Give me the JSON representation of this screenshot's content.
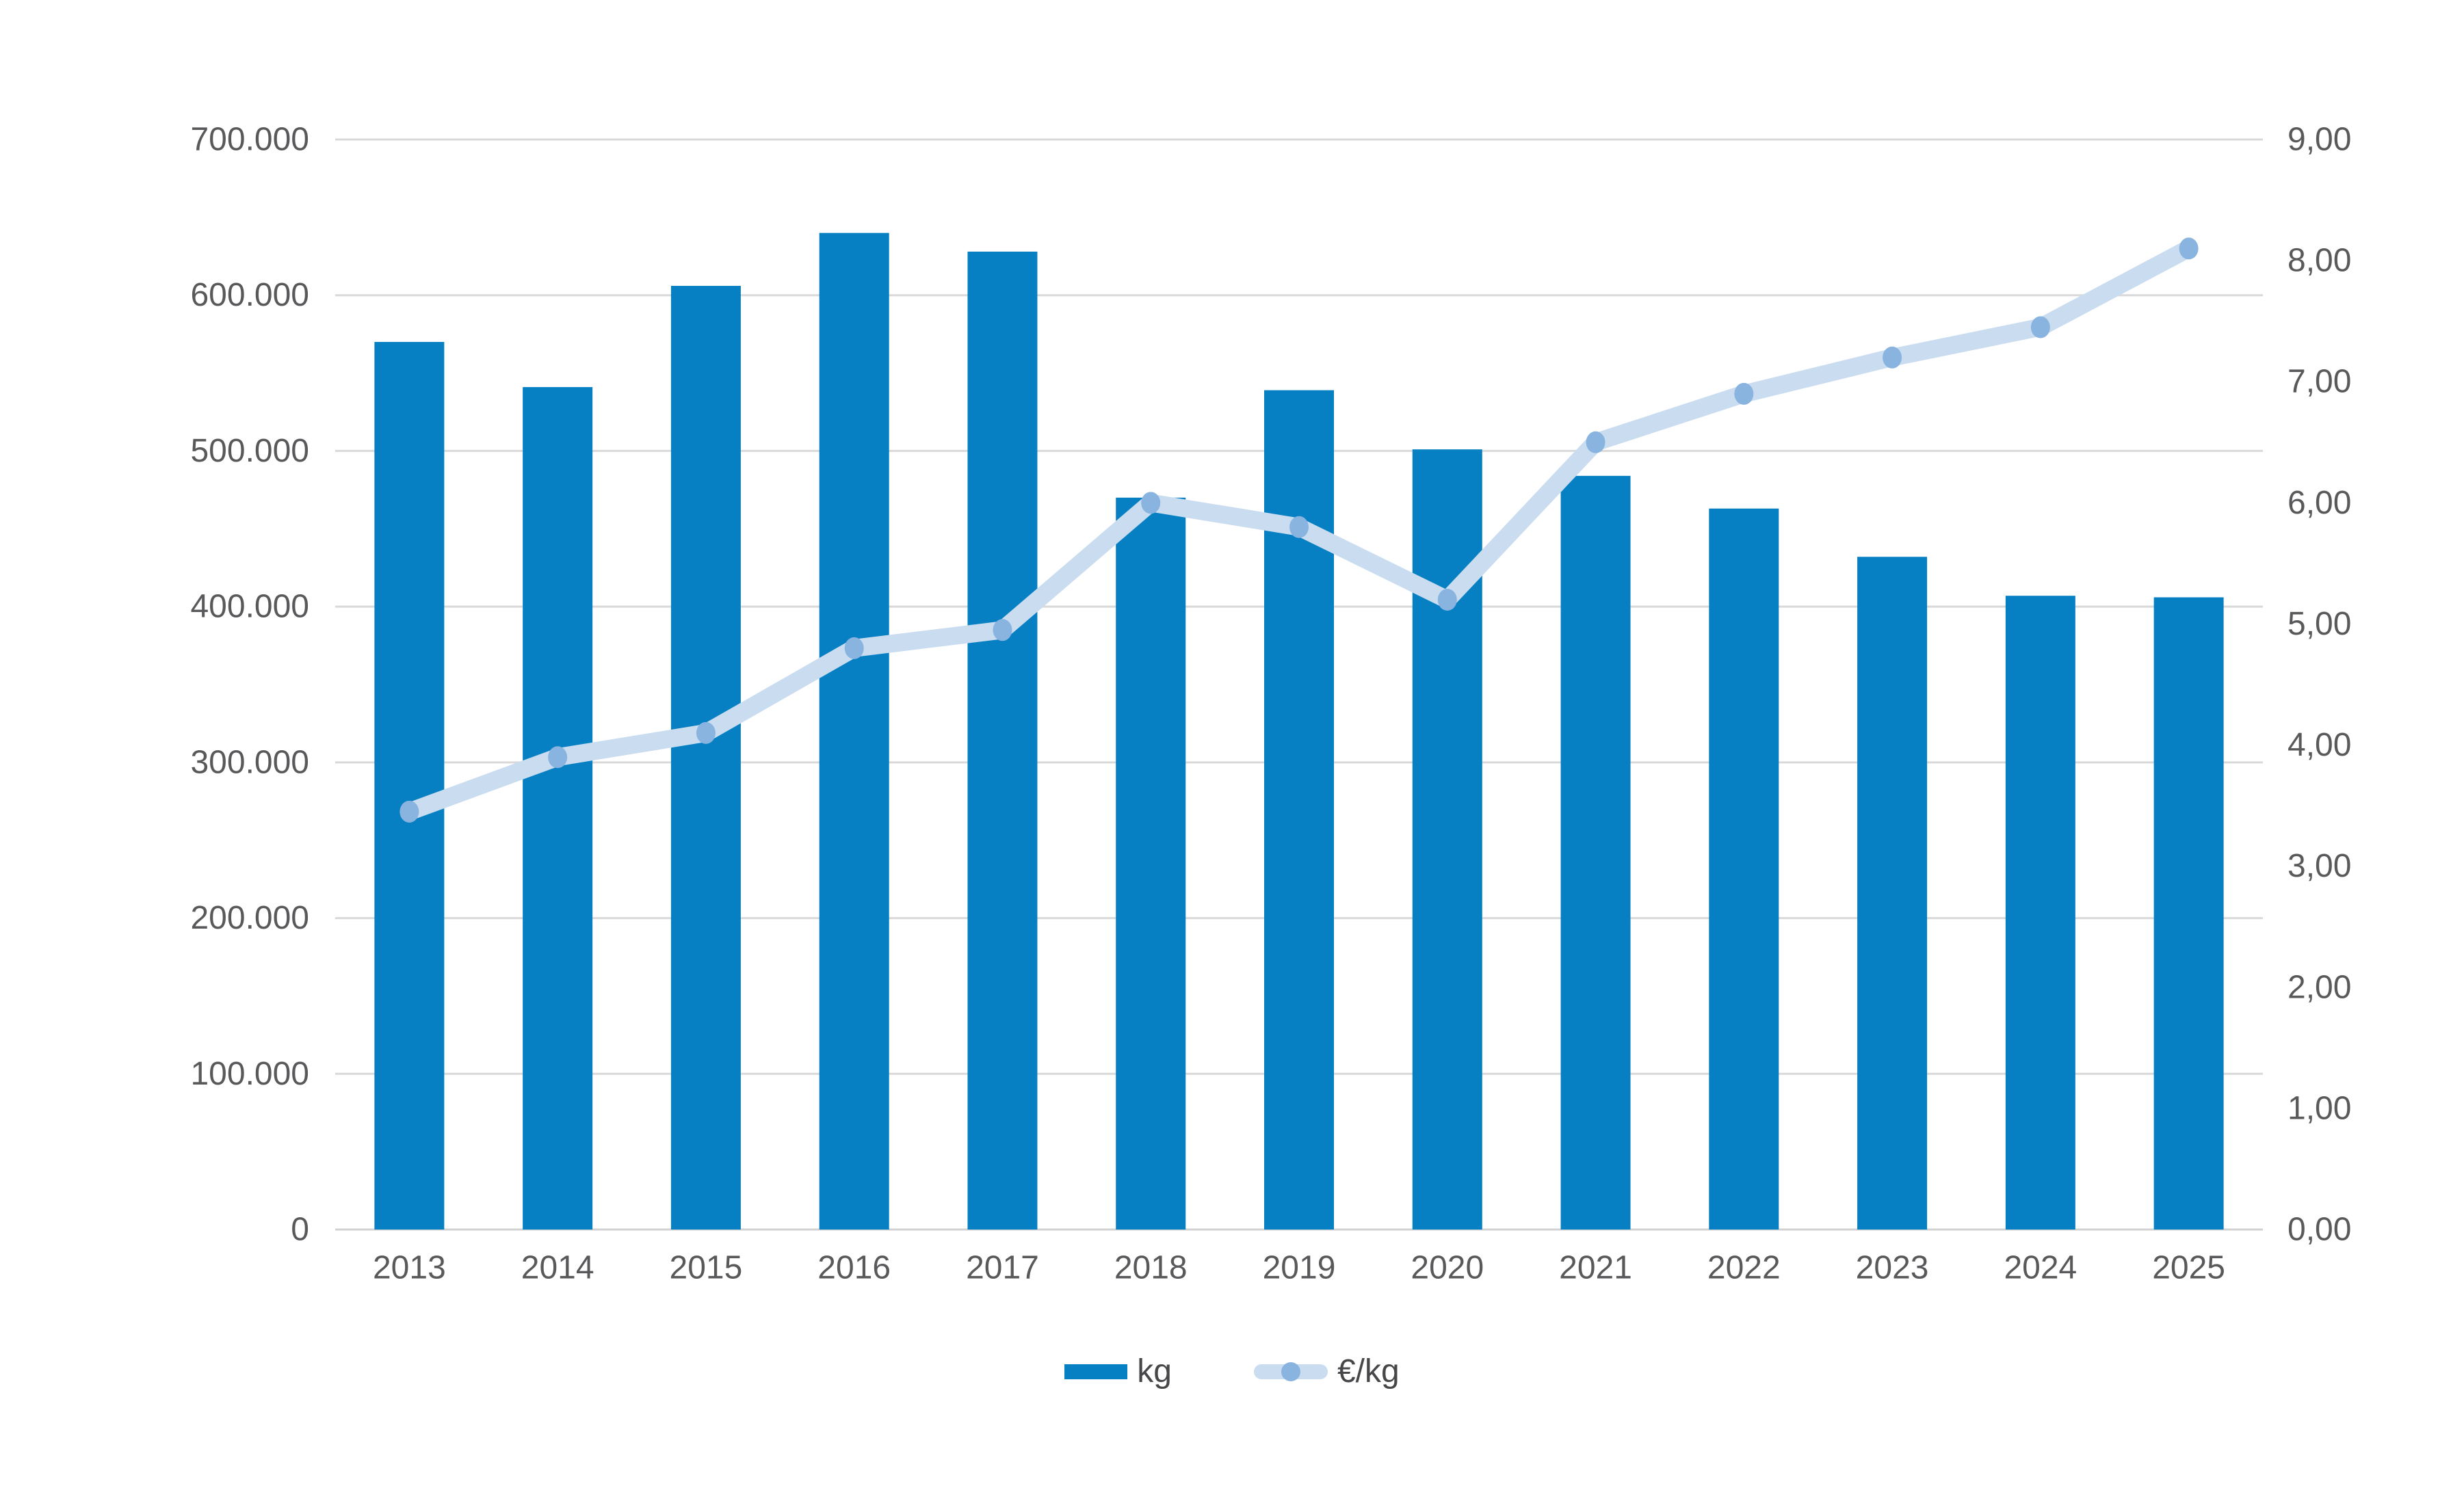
{
  "chart_data": {
    "type": "bar",
    "subtype": "combo-bar-line-dual-axis",
    "title": "",
    "categories": [
      "2013",
      "2014",
      "2015",
      "2016",
      "2017",
      "2018",
      "2019",
      "2020",
      "2021",
      "2022",
      "2023",
      "2024",
      "2025"
    ],
    "series": [
      {
        "name": "kg",
        "chart": "bar",
        "axis": "left",
        "color": "#0780C3",
        "values": [
          570000,
          541000,
          606000,
          640000,
          628000,
          470000,
          539000,
          501000,
          484000,
          463000,
          432000,
          407000,
          406000
        ]
      },
      {
        "name": "€/kg",
        "chart": "line",
        "axis": "right",
        "line_color": "#C9DCF0",
        "marker_color": "#8AB4E0",
        "values": [
          3.45,
          3.9,
          4.1,
          4.8,
          4.95,
          6.0,
          5.8,
          5.2,
          6.5,
          6.9,
          7.2,
          7.45,
          8.1
        ]
      }
    ],
    "left_axis": {
      "min": 0,
      "max": 700000,
      "tick_values": [
        0,
        100000,
        200000,
        300000,
        400000,
        500000,
        600000,
        700000
      ],
      "tick_labels": [
        "0",
        "100.000",
        "200.000",
        "300.000",
        "400.000",
        "500.000",
        "600.000",
        "700.000"
      ]
    },
    "right_axis": {
      "min": 0,
      "max": 9,
      "tick_values": [
        0,
        1,
        2,
        3,
        4,
        5,
        6,
        7,
        8,
        9
      ],
      "tick_labels": [
        "0,00",
        "1,00",
        "2,00",
        "3,00",
        "4,00",
        "5,00",
        "6,00",
        "7,00",
        "8,00",
        "9,00"
      ]
    },
    "grid": true,
    "legend_position": "bottom",
    "legend_items": [
      {
        "label": "kg"
      },
      {
        "label": "€/kg"
      }
    ],
    "colors": {
      "background": "#FFFFFF",
      "grid_line": "#D9D9D9",
      "baseline": "#D2D2D2",
      "axis_text": "#59595B",
      "legend_text": "#47474A"
    }
  }
}
